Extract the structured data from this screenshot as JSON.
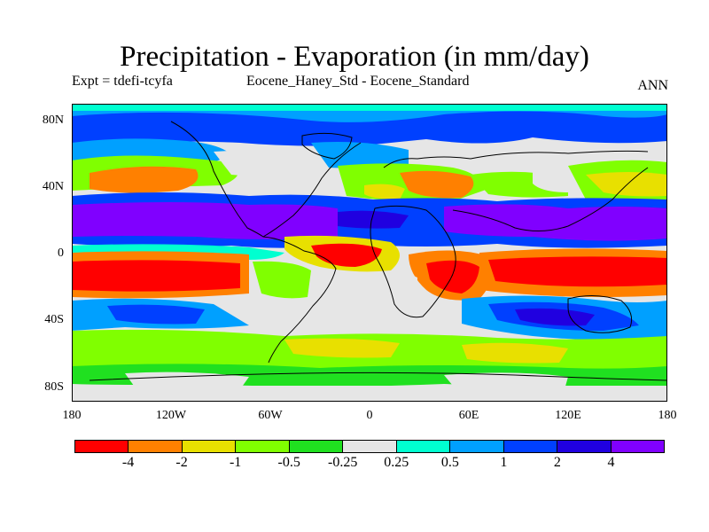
{
  "title": "Precipitation - Evaporation (in mm/day)",
  "left_label": "Expt = tdefi-tcyfa",
  "center_label": "Eocene_Haney_Std - Eocene_Standard",
  "right_label": "ANN",
  "lat_ticks": [
    "80N",
    "40N",
    "0",
    "40S",
    "80S"
  ],
  "lon_ticks": [
    "180",
    "120W",
    "60W",
    "0",
    "60E",
    "120E",
    "180"
  ],
  "colorbar": {
    "colors": [
      "#ff0000",
      "#ff8000",
      "#e8e000",
      "#80ff00",
      "#20e020",
      "#e6e6e6",
      "#00ffd0",
      "#00a0ff",
      "#0040ff",
      "#2000e0",
      "#8000ff"
    ],
    "labels": [
      "-4",
      "-2",
      "-1",
      "-0.5",
      "-0.25",
      "0.25",
      "0.5",
      "1",
      "2",
      "4"
    ]
  }
}
